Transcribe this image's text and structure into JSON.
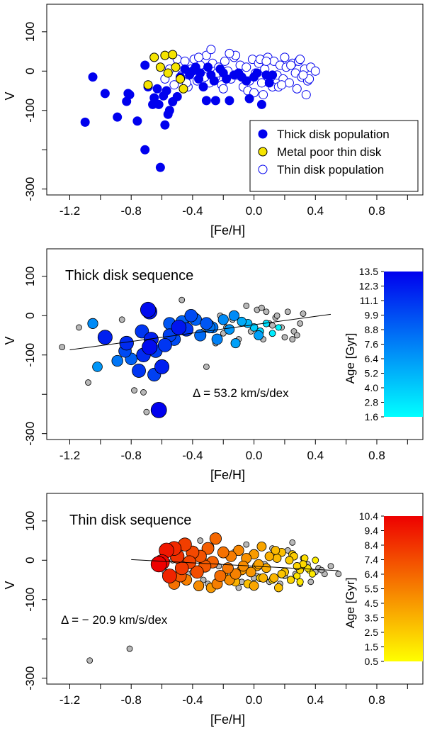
{
  "chart_data": [
    {
      "type": "scatter",
      "xlabel": "[Fe/H]",
      "ylabel": "V",
      "xlim": [
        -1.35,
        1.1
      ],
      "ylim": [
        -315,
        170
      ],
      "x_ticks": [
        "-1.2",
        "-0.8",
        "-0.4",
        "0.0",
        "0.4",
        "0.8"
      ],
      "y_ticks": [
        "100",
        "0",
        "-100",
        "-300"
      ],
      "legend_position": "bottom-right",
      "colors": {
        "thick": "#0000ee",
        "thin_edge": "#0000ee",
        "metal_poor": "#f5e400"
      },
      "legend": [
        "Thick disk population",
        "Metal poor thin disk",
        "Thin disk population"
      ],
      "series": [
        {
          "name": "Thick disk population",
          "x": [
            -1.1,
            -1.05,
            -0.97,
            -0.89,
            -0.83,
            -0.82,
            -0.81,
            -0.76,
            -0.71,
            -0.71,
            -0.69,
            -0.66,
            -0.65,
            -0.63,
            -0.62,
            -0.61,
            -0.59,
            -0.58,
            -0.57,
            -0.56,
            -0.55,
            -0.53,
            -0.5,
            -0.48,
            -0.45,
            -0.42,
            -0.4,
            -0.38,
            -0.36,
            -0.35,
            -0.33,
            -0.31,
            -0.3,
            -0.28,
            -0.26,
            -0.25,
            -0.22,
            -0.2,
            -0.18,
            -0.16,
            -0.13,
            -0.1,
            -0.08,
            -0.05,
            -0.03,
            0.0,
            0.02,
            0.05,
            0.08,
            0.1,
            0.12
          ],
          "y": [
            -130,
            -15,
            -57,
            -117,
            -77,
            -57,
            -60,
            -127,
            -200,
            15,
            -40,
            -85,
            -68,
            -45,
            -85,
            -245,
            -63,
            -137,
            -50,
            -110,
            -100,
            -78,
            -65,
            -15,
            5,
            -10,
            0,
            10,
            -20,
            -5,
            -40,
            -75,
            10,
            -10,
            -25,
            -75,
            5,
            -5,
            -20,
            -75,
            -10,
            -5,
            -15,
            -25,
            -70,
            -15,
            -5,
            -85,
            -10,
            -30,
            -10
          ]
        },
        {
          "name": "Metal poor thin disk",
          "x": [
            -0.69,
            -0.65,
            -0.61,
            -0.58,
            -0.56,
            -0.53,
            -0.51,
            -0.48,
            -0.46
          ],
          "y": [
            -35,
            35,
            10,
            40,
            -5,
            42,
            10,
            -20,
            -45
          ]
        },
        {
          "name": "Thin disk population",
          "x": [
            -0.58,
            -0.55,
            -0.52,
            -0.5,
            -0.47,
            -0.45,
            -0.43,
            -0.41,
            -0.39,
            -0.37,
            -0.35,
            -0.33,
            -0.31,
            -0.29,
            -0.27,
            -0.25,
            -0.23,
            -0.21,
            -0.19,
            -0.17,
            -0.15,
            -0.13,
            -0.11,
            -0.09,
            -0.07,
            -0.05,
            -0.03,
            -0.01,
            0.01,
            0.03,
            0.05,
            0.07,
            0.09,
            0.11,
            0.13,
            0.15,
            0.17,
            0.19,
            0.21,
            0.23,
            0.25,
            0.27,
            0.29,
            0.31,
            0.33,
            0.35,
            0.37,
            0.4,
            -0.44,
            -0.36,
            -0.28,
            -0.2,
            -0.12,
            -0.04,
            0.04,
            0.12,
            0.2,
            0.28,
            0.36,
            -0.32,
            -0.16,
            0.0,
            0.16,
            0.32,
            -0.24,
            0.08,
            0.24,
            0.06,
            0.18,
            0.3,
            0.34
          ],
          "y": [
            -20,
            5,
            -35,
            30,
            -10,
            25,
            -40,
            5,
            30,
            -25,
            15,
            -5,
            40,
            -30,
            20,
            -15,
            10,
            -35,
            25,
            0,
            -20,
            35,
            -10,
            15,
            -40,
            10,
            -25,
            30,
            -5,
            20,
            -30,
            5,
            35,
            -15,
            25,
            -10,
            15,
            -20,
            10,
            -30,
            20,
            -5,
            25,
            -15,
            5,
            -25,
            10,
            0,
            -30,
            35,
            55,
            -45,
            40,
            -50,
            30,
            -40,
            35,
            -45,
            -20,
            -15,
            45,
            -55,
            -40,
            -10,
            -5,
            25,
            15,
            -60,
            -35,
            30,
            -60
          ]
        }
      ]
    },
    {
      "type": "scatter",
      "title": "Thick disk sequence",
      "annotation": "Δ = 53.2 km/s/dex",
      "xlabel": "[Fe/H]",
      "ylabel": "V",
      "xlim": [
        -1.35,
        1.1
      ],
      "ylim": [
        -315,
        170
      ],
      "x_ticks": [
        "-1.2",
        "-0.8",
        "-0.4",
        "0.0",
        "0.4",
        "0.8"
      ],
      "y_ticks": [
        "100",
        "0",
        "-100",
        "-300"
      ],
      "fit_line": {
        "slope": 53.2,
        "intercept": -23.1,
        "x_range": [
          -1.2,
          0.5
        ]
      },
      "colorbar": {
        "label": "Age [Gyr]",
        "ticks": [
          "13.5",
          "12.3",
          "11.1",
          "9.9",
          "8.8",
          "7.6",
          "6.4",
          "5.2",
          "4.0",
          "2.8",
          "1.6"
        ],
        "range": [
          1.6,
          13.5
        ],
        "low_color": "#00ffff",
        "high_color": "#0000ee"
      },
      "series": [
        {
          "name": "age-colored",
          "x": [
            -0.62,
            -0.69,
            -0.68,
            -0.97,
            -0.83,
            -0.73,
            -0.68,
            -0.6,
            -0.58,
            -0.55,
            -0.52,
            -0.49,
            -0.44,
            -0.41,
            -0.38,
            -0.35,
            -0.31,
            -0.27,
            -0.24,
            -0.2,
            -0.16,
            -0.12,
            -0.08,
            -0.04,
            0.0,
            0.04,
            0.08,
            0.12,
            0.16,
            -1.05,
            -1.02,
            -0.89,
            -0.8,
            -0.65,
            -0.47,
            -0.29,
            -0.13,
            0.03,
            -0.75,
            -0.67,
            -0.64,
            -0.55,
            -0.84,
            -0.72
          ],
          "y": [
            -240,
            15,
            10,
            -55,
            -70,
            -40,
            -80,
            -130,
            -75,
            -50,
            -60,
            -30,
            -35,
            0,
            -10,
            -50,
            -20,
            -30,
            -60,
            -10,
            -35,
            -70,
            -15,
            -20,
            -30,
            -40,
            -20,
            -45,
            -30,
            -20,
            -130,
            -115,
            -110,
            -150,
            -15,
            -30,
            0,
            -50,
            -140,
            -60,
            -90,
            -20,
            -90,
            -100
          ],
          "age": [
            13.5,
            13,
            12.5,
            12,
            11.5,
            11,
            13,
            12,
            11,
            10.5,
            10,
            12.5,
            11,
            10,
            9,
            8.5,
            9.5,
            8,
            7.5,
            7,
            6.5,
            6,
            5.5,
            5,
            4,
            3.5,
            3,
            2.5,
            2,
            7,
            6.5,
            8,
            9,
            10.5,
            9,
            8,
            7,
            6,
            11,
            12,
            10.5,
            9.5,
            10,
            11.5
          ]
        },
        {
          "name": "gray",
          "x": [
            -1.25,
            -1.14,
            -1.08,
            -0.86,
            -0.78,
            -0.72,
            -0.7,
            -0.47,
            -0.43,
            -0.38,
            -0.33,
            -0.31,
            -0.28,
            -0.25,
            -0.22,
            -0.18,
            -0.14,
            -0.1,
            -0.06,
            -0.02,
            0.02,
            0.06,
            0.1,
            0.14,
            0.18,
            0.22,
            0.26,
            0.3,
            0.05,
            0.15,
            0.25,
            0.28,
            0.08,
            -0.2,
            -0.05,
            0.2,
            0.32,
            0.12
          ],
          "y": [
            -80,
            -30,
            -170,
            -10,
            -190,
            -195,
            -245,
            40,
            -10,
            0,
            -40,
            -130,
            -20,
            -70,
            0,
            -30,
            -10,
            -60,
            -20,
            -40,
            15,
            -60,
            -20,
            -5,
            -30,
            10,
            -40,
            -20,
            20,
            0,
            -60,
            -50,
            10,
            -45,
            25,
            -55,
            5,
            -25
          ]
        }
      ]
    },
    {
      "type": "scatter",
      "title": "Thin disk sequence",
      "annotation": "Δ = − 20.9 km/s/dex",
      "xlabel": "[Fe/H]",
      "ylabel": "V",
      "xlim": [
        -1.35,
        1.1
      ],
      "ylim": [
        -315,
        170
      ],
      "x_ticks": [
        "-1.2",
        "-0.8",
        "-0.4",
        "0.0",
        "0.4",
        "0.8"
      ],
      "y_ticks": [
        "100",
        "0",
        "-100",
        "-300"
      ],
      "fit_line": {
        "slope": -20.9,
        "intercept": -15.0,
        "x_range": [
          -0.8,
          0.55
        ]
      },
      "colorbar": {
        "label": "Age [Gyr]",
        "ticks": [
          "10.4",
          "9.4",
          "8.4",
          "7.4",
          "6.4",
          "5.5",
          "4.5",
          "3.5",
          "2.5",
          "1.5",
          "0.5"
        ],
        "range": [
          0.5,
          10.4
        ],
        "low_color": "#ffff00",
        "high_color": "#ee0000"
      },
      "series": [
        {
          "name": "age-colored",
          "x": [
            -0.62,
            -0.6,
            -0.57,
            -0.55,
            -0.52,
            -0.5,
            -0.47,
            -0.45,
            -0.42,
            -0.4,
            -0.37,
            -0.35,
            -0.32,
            -0.3,
            -0.27,
            -0.25,
            -0.22,
            -0.2,
            -0.17,
            -0.15,
            -0.12,
            -0.1,
            -0.07,
            -0.05,
            -0.02,
            0.0,
            0.03,
            0.05,
            0.08,
            0.1,
            0.13,
            0.15,
            0.18,
            0.2,
            0.23,
            0.25,
            0.28,
            0.3,
            0.33,
            0.35,
            0.38,
            0.4,
            -0.52,
            -0.44,
            -0.36,
            -0.28,
            -0.2,
            -0.12,
            -0.04,
            0.04,
            0.12,
            0.2,
            0.28,
            0.36,
            -0.48,
            -0.32,
            -0.16,
            0.0,
            0.16,
            0.32,
            -0.24,
            0.08,
            0.24,
            0.06,
            0.18,
            0.3,
            0.26,
            0.14,
            0.02,
            -0.08
          ],
          "y": [
            -10,
            -5,
            25,
            -40,
            30,
            10,
            -20,
            40,
            -5,
            20,
            -30,
            10,
            -15,
            30,
            -5,
            55,
            -40,
            20,
            -20,
            10,
            -35,
            25,
            -15,
            5,
            -30,
            15,
            -10,
            35,
            -20,
            10,
            -45,
            5,
            20,
            -30,
            0,
            15,
            -15,
            -25,
            5,
            -20,
            -35,
            0,
            -60,
            -50,
            -65,
            -70,
            -40,
            -55,
            -60,
            -45,
            -50,
            -30,
            -40,
            -25,
            -40,
            -10,
            -50,
            -65,
            -70,
            -10,
            -60,
            -20,
            -50,
            -45,
            -35,
            -55,
            10,
            25,
            -15,
            -25
          ],
          "age": [
            10.4,
            10,
            9.5,
            9,
            8.8,
            8.5,
            8.2,
            8,
            7.8,
            7.6,
            7.4,
            7.2,
            7,
            6.8,
            6.6,
            6.4,
            6.2,
            6,
            5.8,
            5.6,
            5.4,
            5.2,
            5,
            4.8,
            4.6,
            4.4,
            4.2,
            4,
            3.8,
            3.6,
            3.4,
            3.2,
            3,
            2.8,
            2.6,
            2.4,
            2.2,
            2,
            1.8,
            1.6,
            1.4,
            1.2,
            6,
            5.5,
            5,
            4.5,
            4,
            3.5,
            3,
            2.5,
            2,
            1.8,
            1.5,
            1.2,
            7,
            6,
            5,
            4,
            3,
            2,
            5.5,
            3,
            2.2,
            3.5,
            2.8,
            1.5,
            2.5,
            3.2,
            4,
            4.5
          ]
        },
        {
          "name": "gray",
          "x": [
            -1.07,
            -0.81,
            -0.58,
            -0.53,
            -0.48,
            -0.43,
            -0.38,
            -0.33,
            -0.28,
            -0.23,
            -0.18,
            -0.13,
            -0.08,
            -0.03,
            0.02,
            0.07,
            0.12,
            0.17,
            0.22,
            0.27,
            0.32,
            0.37,
            0.42,
            0.46,
            0.55,
            -0.4,
            -0.3,
            -0.2,
            -0.1,
            0.0,
            0.1,
            0.2,
            0.3,
            0.4,
            -0.35,
            -0.05,
            0.25,
            0.35,
            0.44,
            0.5
          ],
          "y": [
            -255,
            -225,
            -30,
            0,
            10,
            -35,
            20,
            -50,
            35,
            -15,
            -45,
            20,
            -55,
            10,
            -40,
            -10,
            30,
            -60,
            25,
            -35,
            5,
            -55,
            -20,
            -35,
            -35,
            -30,
            -60,
            -45,
            -70,
            -45,
            -55,
            -40,
            -60,
            -30,
            50,
            40,
            45,
            -10,
            -25,
            -15
          ]
        }
      ]
    }
  ]
}
